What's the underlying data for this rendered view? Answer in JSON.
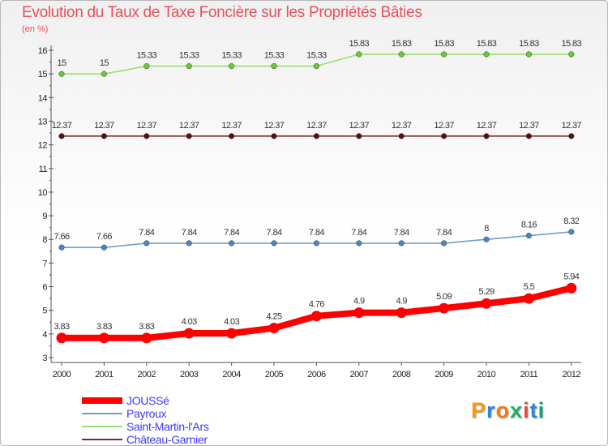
{
  "title": "Evolution du Taux de Taxe Foncière sur les Propriétés Bâties",
  "unit": "(en %)",
  "logo": {
    "text": "Proxiti",
    "letter_colors": [
      "#f39c12",
      "#2e86de",
      "#e67e22",
      "#27ae60",
      "#e74c3c",
      "#2e86de",
      "#16a085"
    ]
  },
  "chart_data": {
    "type": "line",
    "title": "Evolution du Taux de Taxe Foncière sur les Propriétés Bâties",
    "ylabel": "(en %)",
    "x": [
      "2000",
      "2001",
      "2002",
      "2003",
      "2004",
      "2005",
      "2006",
      "2007",
      "2008",
      "2009",
      "2010",
      "2011",
      "2012"
    ],
    "ylim": [
      3,
      16
    ],
    "yticks": [
      "3",
      "4",
      "5",
      "6",
      "7",
      "8",
      "9",
      "10",
      "11",
      "12",
      "13",
      "14",
      "15",
      "16"
    ],
    "grid": false,
    "legend_position": "bottom-left",
    "series": [
      {
        "name": "JOUSSé",
        "color": "#ff0000",
        "values": [
          3.83,
          3.83,
          3.83,
          4.03,
          4.03,
          4.25,
          4.76,
          4.9,
          4.9,
          5.09,
          5.29,
          5.5,
          5.94
        ],
        "labels": [
          "3.83",
          "3.83",
          "3.83",
          "4.03",
          "4.03",
          "4.25",
          "4.76",
          "4.9",
          "4.9",
          "5.09",
          "5.29",
          "5.5",
          "5.94"
        ]
      },
      {
        "name": "Payroux",
        "color": "#6ea0c8",
        "marker": "#4488cc",
        "values": [
          7.66,
          7.66,
          7.84,
          7.84,
          7.84,
          7.84,
          7.84,
          7.84,
          7.84,
          7.84,
          8,
          8.16,
          8.32
        ],
        "labels": [
          "7.66",
          "7.66",
          "7.84",
          "7.84",
          "7.84",
          "7.84",
          "7.84",
          "7.84",
          "7.84",
          "7.84",
          "8",
          "8.16",
          "8.32"
        ]
      },
      {
        "name": "Saint-Martin-l'Ars",
        "color": "#9bdd70",
        "marker": "#66cc33",
        "values": [
          15,
          15,
          15.33,
          15.33,
          15.33,
          15.33,
          15.33,
          15.83,
          15.83,
          15.83,
          15.83,
          15.83,
          15.83
        ],
        "labels": [
          "15",
          "15",
          "15.33",
          "15.33",
          "15.33",
          "15.33",
          "15.33",
          "15.83",
          "15.83",
          "15.83",
          "15.83",
          "15.83",
          "15.83"
        ]
      },
      {
        "name": "Château-Garnier",
        "color": "#7a2a2a",
        "marker": "#551111",
        "values": [
          12.37,
          12.37,
          12.37,
          12.37,
          12.37,
          12.37,
          12.37,
          12.37,
          12.37,
          12.37,
          12.37,
          12.37,
          12.37
        ],
        "labels": [
          "12.37",
          "12.37",
          "12.37",
          "12.37",
          "12.37",
          "12.37",
          "12.37",
          "12.37",
          "12.37",
          "12.37",
          "12.37",
          "12.37",
          "12.37"
        ]
      }
    ]
  }
}
